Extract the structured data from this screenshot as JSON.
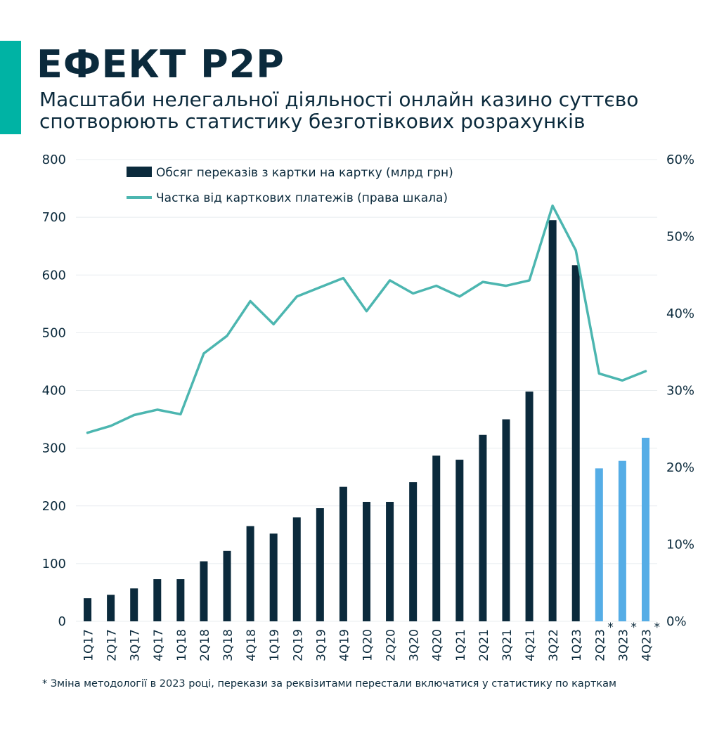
{
  "header": {
    "title": "ЕФЕКТ P2P",
    "subtitle_line1": "Масштаби нелегальної діяльності онлайн казино суттєво",
    "subtitle_line2": "спотворюють статистику безготівкових розрахунків"
  },
  "footnote": "* Зміна методології в 2023 році, перекази за реквізитами перестали включатися у статистику по карткам",
  "colors": {
    "bar": "#0b2a3c",
    "bar_highlight": "#55ade6",
    "line": "#4cb6b0",
    "grid": "#e8ecef",
    "accent": "#00b3a4"
  },
  "chart_data": {
    "type": "bar",
    "categories": [
      "1Q17",
      "2Q17",
      "3Q17",
      "4Q17",
      "1Q18",
      "2Q18",
      "3Q18",
      "4Q18",
      "1Q19",
      "2Q19",
      "3Q19",
      "4Q19",
      "1Q20",
      "2Q20",
      "3Q20",
      "4Q20",
      "1Q21",
      "2Q21",
      "3Q21",
      "4Q21",
      "3Q22",
      "1Q23",
      "2Q23",
      "3Q23",
      "4Q23"
    ],
    "category_marks": [
      "",
      "",
      "",
      "",
      "",
      "",
      "",
      "",
      "",
      "",
      "",
      "",
      "",
      "",
      "",
      "",
      "",
      "",
      "",
      "",
      "",
      "",
      "*",
      "*",
      "*"
    ],
    "highlight_from_index": 22,
    "ylim_left": [
      0,
      800
    ],
    "yticks_left": [
      "0",
      "100",
      "200",
      "300",
      "400",
      "500",
      "600",
      "700",
      "800"
    ],
    "ylim_right": [
      0,
      60
    ],
    "yticks_right": [
      "0%",
      "10%",
      "20%",
      "30%",
      "40%",
      "50%",
      "60%"
    ],
    "grid": true,
    "legend_position": "top-left",
    "series": [
      {
        "name": "Обсяг переказів з картки на картку (млрд грн)",
        "type": "bar",
        "axis": "left",
        "values": [
          40,
          46,
          57,
          73,
          73,
          104,
          122,
          165,
          152,
          180,
          196,
          233,
          207,
          207,
          241,
          287,
          280,
          323,
          350,
          398,
          695,
          617,
          265,
          278,
          318
        ]
      },
      {
        "name": "Частка від карткових платежів (права шкала)",
        "type": "line",
        "axis": "right",
        "values": [
          24.5,
          25.4,
          26.8,
          27.5,
          26.9,
          34.8,
          37.1,
          41.6,
          38.6,
          42.2,
          43.4,
          44.6,
          40.3,
          44.3,
          42.6,
          43.6,
          42.2,
          44.1,
          43.6,
          44.3,
          54.0,
          48.2,
          32.2,
          31.3,
          32.5
        ]
      }
    ]
  }
}
